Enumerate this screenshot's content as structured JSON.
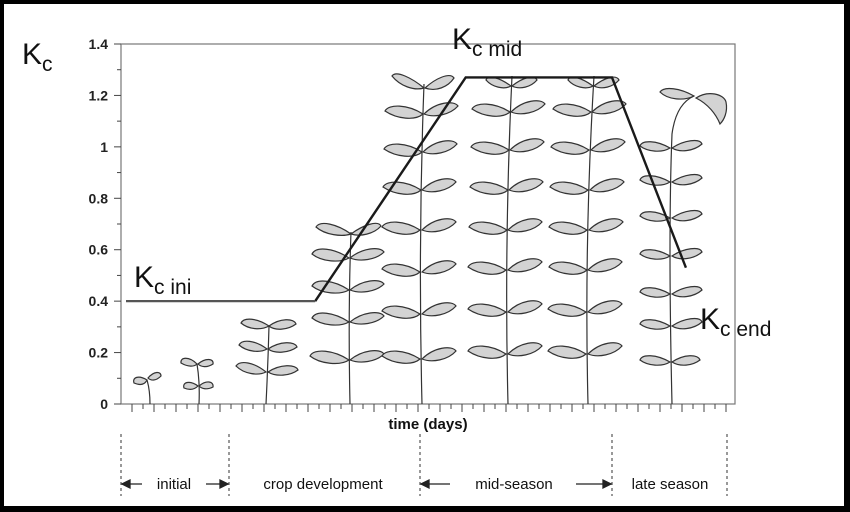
{
  "chart_data": {
    "type": "line",
    "title": "",
    "ylabel": "Kc",
    "ylabel_main": "K",
    "ylabel_sub": "c",
    "xlabel": "time (days)",
    "ylim": [
      0,
      1.4
    ],
    "yticks": [
      "0",
      "0.2",
      "0.4",
      "0.6",
      "0.8",
      "1",
      "1.2",
      "1.4"
    ],
    "grid": false,
    "series": [
      {
        "points": [
          {
            "x": 0.0,
            "y": 0.4
          },
          {
            "x": 0.225,
            "y": 0.4
          },
          {
            "x": 0.618,
            "y": 1.27
          },
          {
            "x": 1.0,
            "y": 1.27
          },
          {
            "x": 1.193,
            "y": 0.53
          }
        ]
      }
    ],
    "annotations": [
      {
        "main": "K",
        "sub": "c ini"
      },
      {
        "main": "K",
        "sub": "c mid"
      },
      {
        "main": "K",
        "sub": "c end"
      }
    ],
    "stages": [
      {
        "label": "initial"
      },
      {
        "label": "crop development"
      },
      {
        "label": "mid-season"
      },
      {
        "label": "late season"
      }
    ]
  }
}
